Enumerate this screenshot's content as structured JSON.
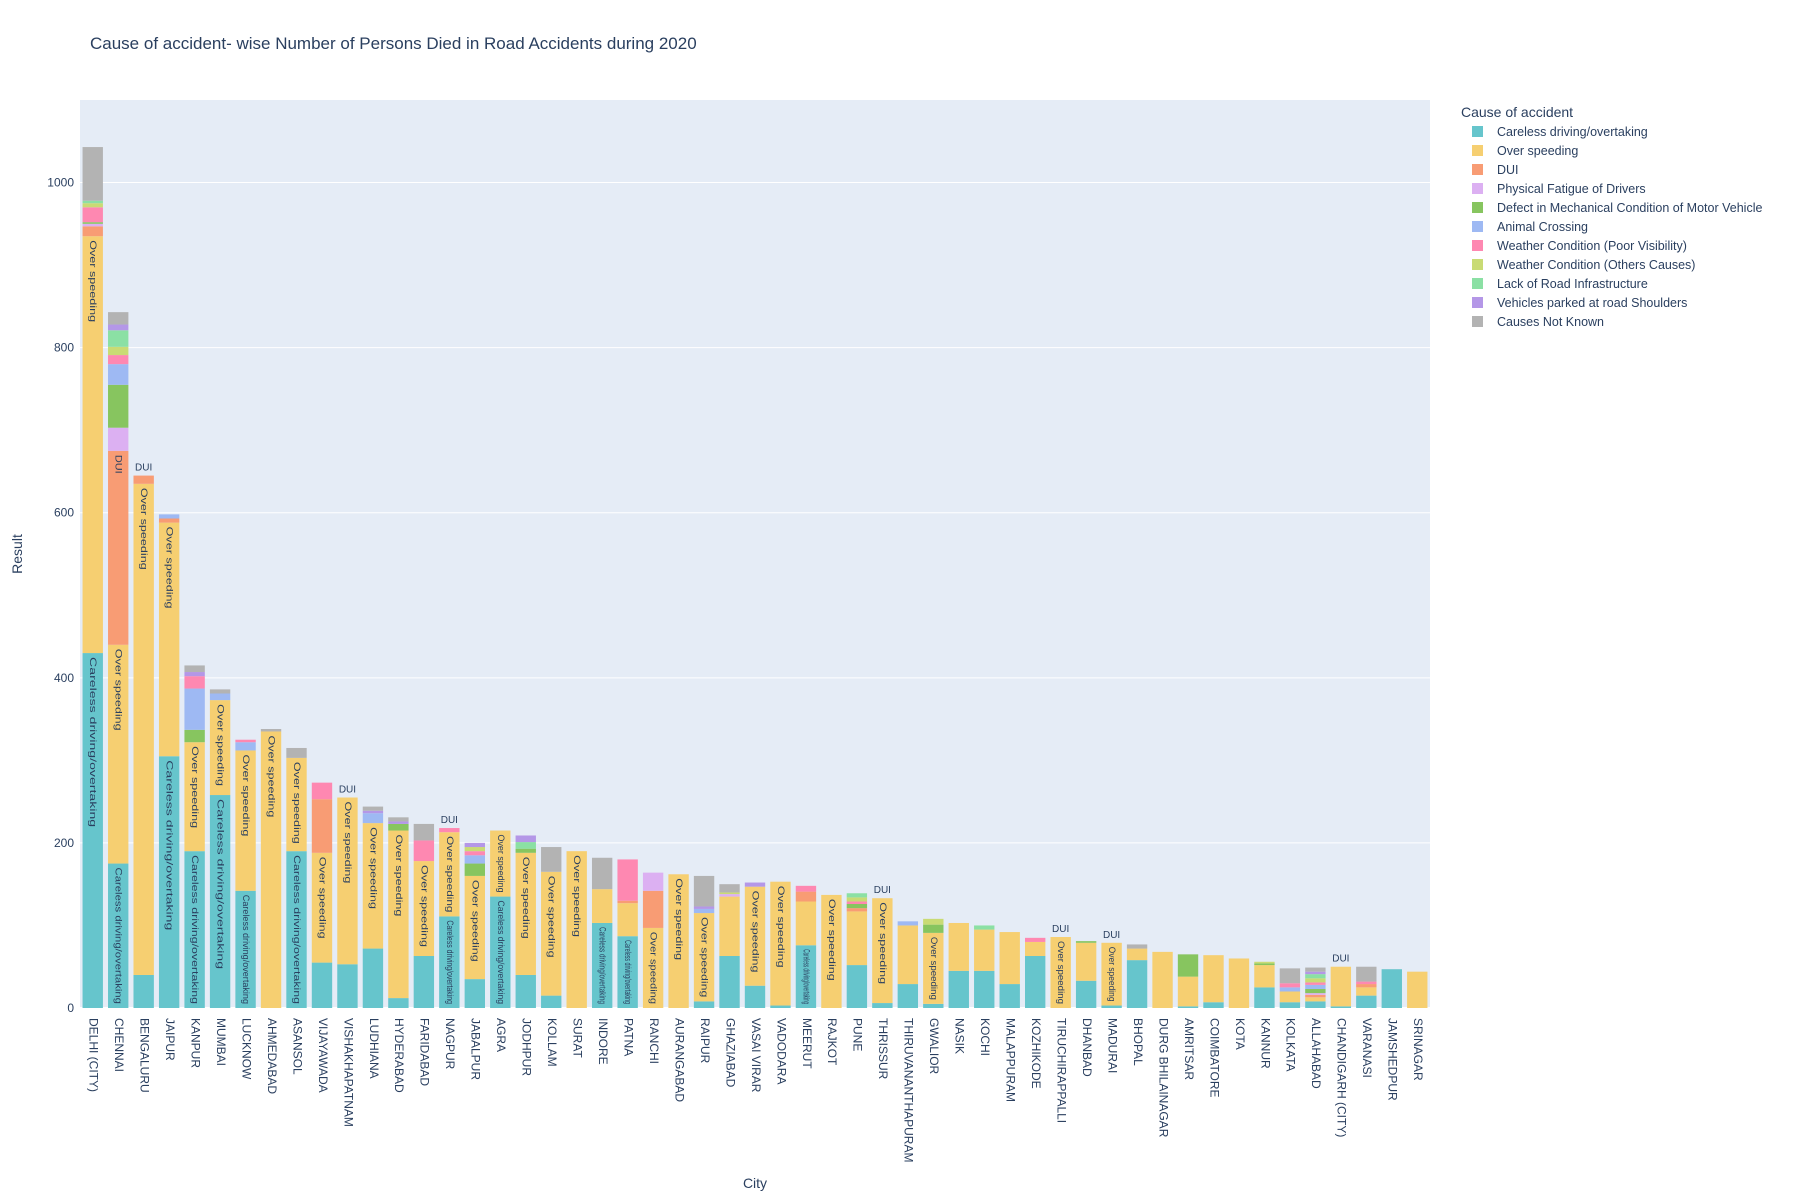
{
  "chart_data": {
    "type": "bar",
    "barmode": "stack",
    "title": "Cause of accident- wise Number of Persons Died in Road Accidents during 2020",
    "xlabel": "City",
    "ylabel": "Result",
    "ylim": [
      0,
      1100
    ],
    "yticks": [
      0,
      200,
      400,
      600,
      800,
      1000
    ],
    "legend_title": "Cause of accident",
    "legend_position": "right",
    "categories": [
      "DELHI (CITY)",
      "CHENNAI",
      "BENGALURU",
      "JAIPUR",
      "KANPUR",
      "MUMBAI",
      "LUCKNOW",
      "AHMEDABAD",
      "ASANSOL",
      "VIJAYAWADA",
      "VISHAKHAPATNAM",
      "LUDHIANA",
      "HYDERABAD",
      "FARIDABAD",
      "NAGPUR",
      "JABALPUR",
      "AGRA",
      "JODHPUR",
      "KOLLAM",
      "SURAT",
      "INDORE",
      "PATNA",
      "RANCHI",
      "AURANGABAD",
      "RAIPUR",
      "GHAZIABAD",
      "VASAI VIRAR",
      "VADODARA",
      "MEERUT",
      "RAJKOT",
      "PUNE",
      "THRISSUR",
      "THIRUVANANTHAPURAM",
      "GWALIOR",
      "NASIK",
      "KOCHI",
      "MALAPPURAM",
      "KOZHIKODE",
      "TIRUCHIRAPPALLI",
      "DHANBAD",
      "MADURAI",
      "BHOPAL",
      "DURG BHILAINAGAR",
      "AMRITSAR",
      "COIMBATORE",
      "KOTA",
      "KANNUR",
      "KOLKATA",
      "ALLAHABAD",
      "CHANDIGARH (CITY)",
      "VARANASI",
      "JAMSHEDPUR",
      "SRINAGAR"
    ],
    "series": [
      {
        "name": "Careless driving/overtaking",
        "color": "#66c5cc",
        "values": [
          430,
          175,
          40,
          305,
          190,
          258,
          142,
          0,
          190,
          55,
          53,
          72,
          12,
          63,
          111,
          35,
          135,
          40,
          15,
          0,
          103,
          87,
          0,
          0,
          8,
          63,
          27,
          3,
          76,
          0,
          52,
          6,
          29,
          5,
          45,
          45,
          29,
          63,
          0,
          33,
          3,
          58,
          0,
          2,
          7,
          0,
          25,
          7,
          8,
          2,
          15,
          47,
          0
        ]
      },
      {
        "name": "Over speeding",
        "color": "#f6cf71",
        "values": [
          505,
          265,
          595,
          283,
          132,
          115,
          170,
          335,
          113,
          133,
          202,
          152,
          203,
          115,
          102,
          125,
          80,
          148,
          150,
          190,
          41,
          40,
          97,
          162,
          107,
          72,
          120,
          150,
          53,
          137,
          65,
          127,
          71,
          86,
          58,
          50,
          63,
          17,
          86,
          46,
          76,
          14,
          68,
          36,
          57,
          60,
          27,
          13,
          5,
          48,
          10,
          0,
          44
        ]
      },
      {
        "name": "DUI",
        "color": "#f89c74",
        "values": [
          12,
          235,
          10,
          5,
          0,
          0,
          0,
          0,
          0,
          65,
          0,
          0,
          0,
          0,
          0,
          0,
          0,
          0,
          0,
          0,
          0,
          3,
          45,
          0,
          0,
          0,
          0,
          0,
          12,
          0,
          4,
          0,
          0,
          0,
          0,
          0,
          0,
          0,
          0,
          0,
          0,
          0,
          0,
          0,
          0,
          0,
          0,
          0,
          3,
          0,
          4,
          0,
          0
        ]
      },
      {
        "name": "Physical Fatigue of Drivers",
        "color": "#dcb0f2",
        "values": [
          3,
          28,
          0,
          0,
          0,
          0,
          0,
          0,
          0,
          0,
          0,
          0,
          0,
          0,
          0,
          0,
          0,
          0,
          0,
          0,
          0,
          0,
          22,
          0,
          0,
          3,
          0,
          0,
          0,
          0,
          0,
          0,
          0,
          0,
          0,
          0,
          0,
          0,
          0,
          0,
          0,
          0,
          0,
          0,
          0,
          0,
          0,
          0,
          2,
          0,
          0,
          0,
          0
        ]
      },
      {
        "name": "Defect in Mechanical Condition of Motor Vehicle",
        "color": "#87c55f",
        "values": [
          2,
          52,
          0,
          0,
          15,
          0,
          0,
          0,
          0,
          0,
          0,
          0,
          8,
          0,
          0,
          15,
          0,
          5,
          0,
          0,
          0,
          0,
          0,
          0,
          0,
          0,
          0,
          0,
          0,
          0,
          5,
          0,
          0,
          10,
          0,
          0,
          0,
          0,
          0,
          2,
          0,
          0,
          0,
          27,
          0,
          0,
          2,
          0,
          5,
          0,
          0,
          0,
          0
        ]
      },
      {
        "name": "Animal Crossing",
        "color": "#9eb9f3",
        "values": [
          0,
          25,
          0,
          5,
          50,
          8,
          10,
          0,
          0,
          0,
          0,
          12,
          0,
          0,
          0,
          10,
          0,
          0,
          0,
          0,
          0,
          0,
          0,
          0,
          5,
          0,
          0,
          0,
          0,
          0,
          0,
          0,
          5,
          0,
          0,
          0,
          0,
          0,
          0,
          0,
          0,
          0,
          0,
          0,
          0,
          0,
          0,
          5,
          5,
          0,
          0,
          0,
          0
        ]
      },
      {
        "name": "Weather Condition (Poor Visibility)",
        "color": "#fe88b1",
        "values": [
          18,
          11,
          0,
          0,
          15,
          0,
          3,
          0,
          0,
          20,
          0,
          0,
          0,
          25,
          5,
          5,
          0,
          0,
          0,
          0,
          0,
          50,
          0,
          0,
          0,
          0,
          0,
          0,
          7,
          0,
          3,
          0,
          0,
          0,
          0,
          0,
          0,
          5,
          0,
          0,
          0,
          0,
          0,
          0,
          0,
          0,
          0,
          5,
          3,
          0,
          3,
          0,
          0
        ]
      },
      {
        "name": "Weather Condition (Others Causes)",
        "color": "#c9db74",
        "values": [
          5,
          10,
          0,
          0,
          0,
          0,
          0,
          0,
          0,
          0,
          0,
          0,
          0,
          0,
          0,
          5,
          0,
          0,
          0,
          0,
          0,
          0,
          0,
          0,
          0,
          2,
          0,
          0,
          0,
          0,
          5,
          0,
          0,
          7,
          0,
          0,
          0,
          0,
          0,
          0,
          0,
          0,
          0,
          0,
          0,
          0,
          2,
          0,
          5,
          0,
          0,
          0,
          0
        ]
      },
      {
        "name": "Lack of Road Infrastructure",
        "color": "#8be0a4",
        "values": [
          3,
          20,
          0,
          0,
          0,
          0,
          0,
          0,
          0,
          0,
          0,
          0,
          0,
          0,
          0,
          0,
          0,
          8,
          0,
          0,
          0,
          0,
          0,
          0,
          0,
          0,
          0,
          0,
          0,
          0,
          5,
          0,
          0,
          0,
          0,
          5,
          0,
          0,
          0,
          0,
          0,
          0,
          0,
          0,
          0,
          0,
          0,
          0,
          5,
          0,
          0,
          0,
          0
        ]
      },
      {
        "name": "Vehicles parked at road  Shoulders",
        "color": "#b497e7",
        "values": [
          0,
          7,
          0,
          0,
          5,
          0,
          0,
          0,
          0,
          0,
          0,
          3,
          3,
          0,
          0,
          5,
          0,
          8,
          0,
          0,
          0,
          0,
          0,
          0,
          3,
          0,
          5,
          0,
          0,
          0,
          0,
          0,
          0,
          0,
          0,
          0,
          0,
          0,
          0,
          0,
          0,
          0,
          0,
          0,
          0,
          0,
          0,
          0,
          3,
          0,
          0,
          0,
          0
        ]
      },
      {
        "name": "Causes Not Known",
        "color": "#b3b3b3",
        "values": [
          65,
          15,
          0,
          0,
          8,
          5,
          0,
          3,
          12,
          0,
          0,
          5,
          5,
          20,
          0,
          0,
          0,
          0,
          30,
          0,
          38,
          0,
          0,
          0,
          37,
          10,
          0,
          0,
          0,
          0,
          0,
          0,
          0,
          0,
          0,
          0,
          0,
          0,
          0,
          0,
          0,
          5,
          0,
          0,
          0,
          0,
          0,
          18,
          5,
          0,
          18,
          0,
          0
        ]
      }
    ],
    "top_labels": [
      {
        "city": "BENGALURU",
        "text": "DUI"
      },
      {
        "city": "VISHAKHAPATNAM",
        "text": "DUI"
      },
      {
        "city": "NAGPUR",
        "text": "DUI"
      },
      {
        "city": "THRISSUR",
        "text": "DUI"
      },
      {
        "city": "TIRUCHIRAPPALLI",
        "text": "DUI"
      },
      {
        "city": "MADURAI",
        "text": "DUI"
      },
      {
        "city": "CHANDIGARH (CITY)",
        "text": "DUI"
      }
    ]
  }
}
